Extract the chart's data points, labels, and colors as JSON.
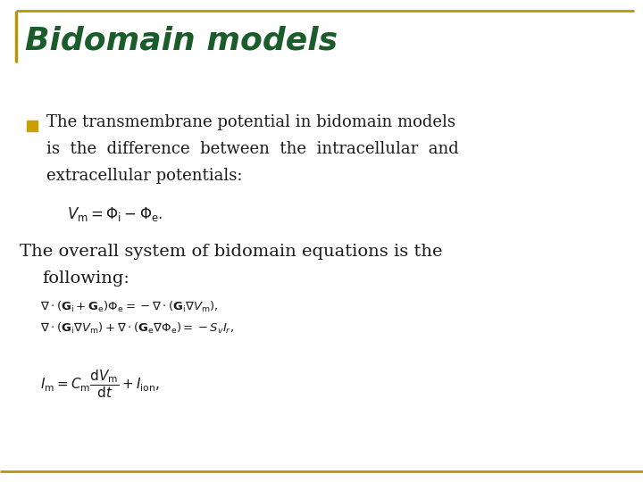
{
  "title": "Bidomain models",
  "title_color": "#1a5c2a",
  "title_fontsize": 26,
  "background_color": "#ffffff",
  "border_color": "#b8960c",
  "bullet_color": "#c8a000",
  "text_color": "#1a1a1a",
  "bottom_line_color": "#b8960c",
  "formula1": "$V_{\\mathrm{m}} = \\Phi_{\\mathrm{i}} - \\Phi_{\\mathrm{e}}.$",
  "formula2a": "$\\nabla \\cdot (\\mathbf{G}_{\\mathrm{i}} + \\mathbf{G}_{\\mathrm{e}})\\Phi_{\\mathrm{e}} = -\\nabla \\cdot (\\mathbf{G}_{\\mathrm{i}} \\nabla V_{\\mathrm{m}}),$",
  "formula2b": "$\\nabla \\cdot (\\mathbf{G}_{\\mathrm{i}} \\nabla V_{\\mathrm{m}}) + \\nabla \\cdot (\\mathbf{G}_{\\mathrm{e}} \\nabla \\Phi_{\\mathrm{e}}) = -S_v I_r,$",
  "formula3": "$I_{\\mathrm{m}} = C_{\\mathrm{m}} \\dfrac{\\mathrm{d}V_{\\mathrm{m}}}{\\mathrm{d}t} + I_{\\mathrm{ion}},$"
}
